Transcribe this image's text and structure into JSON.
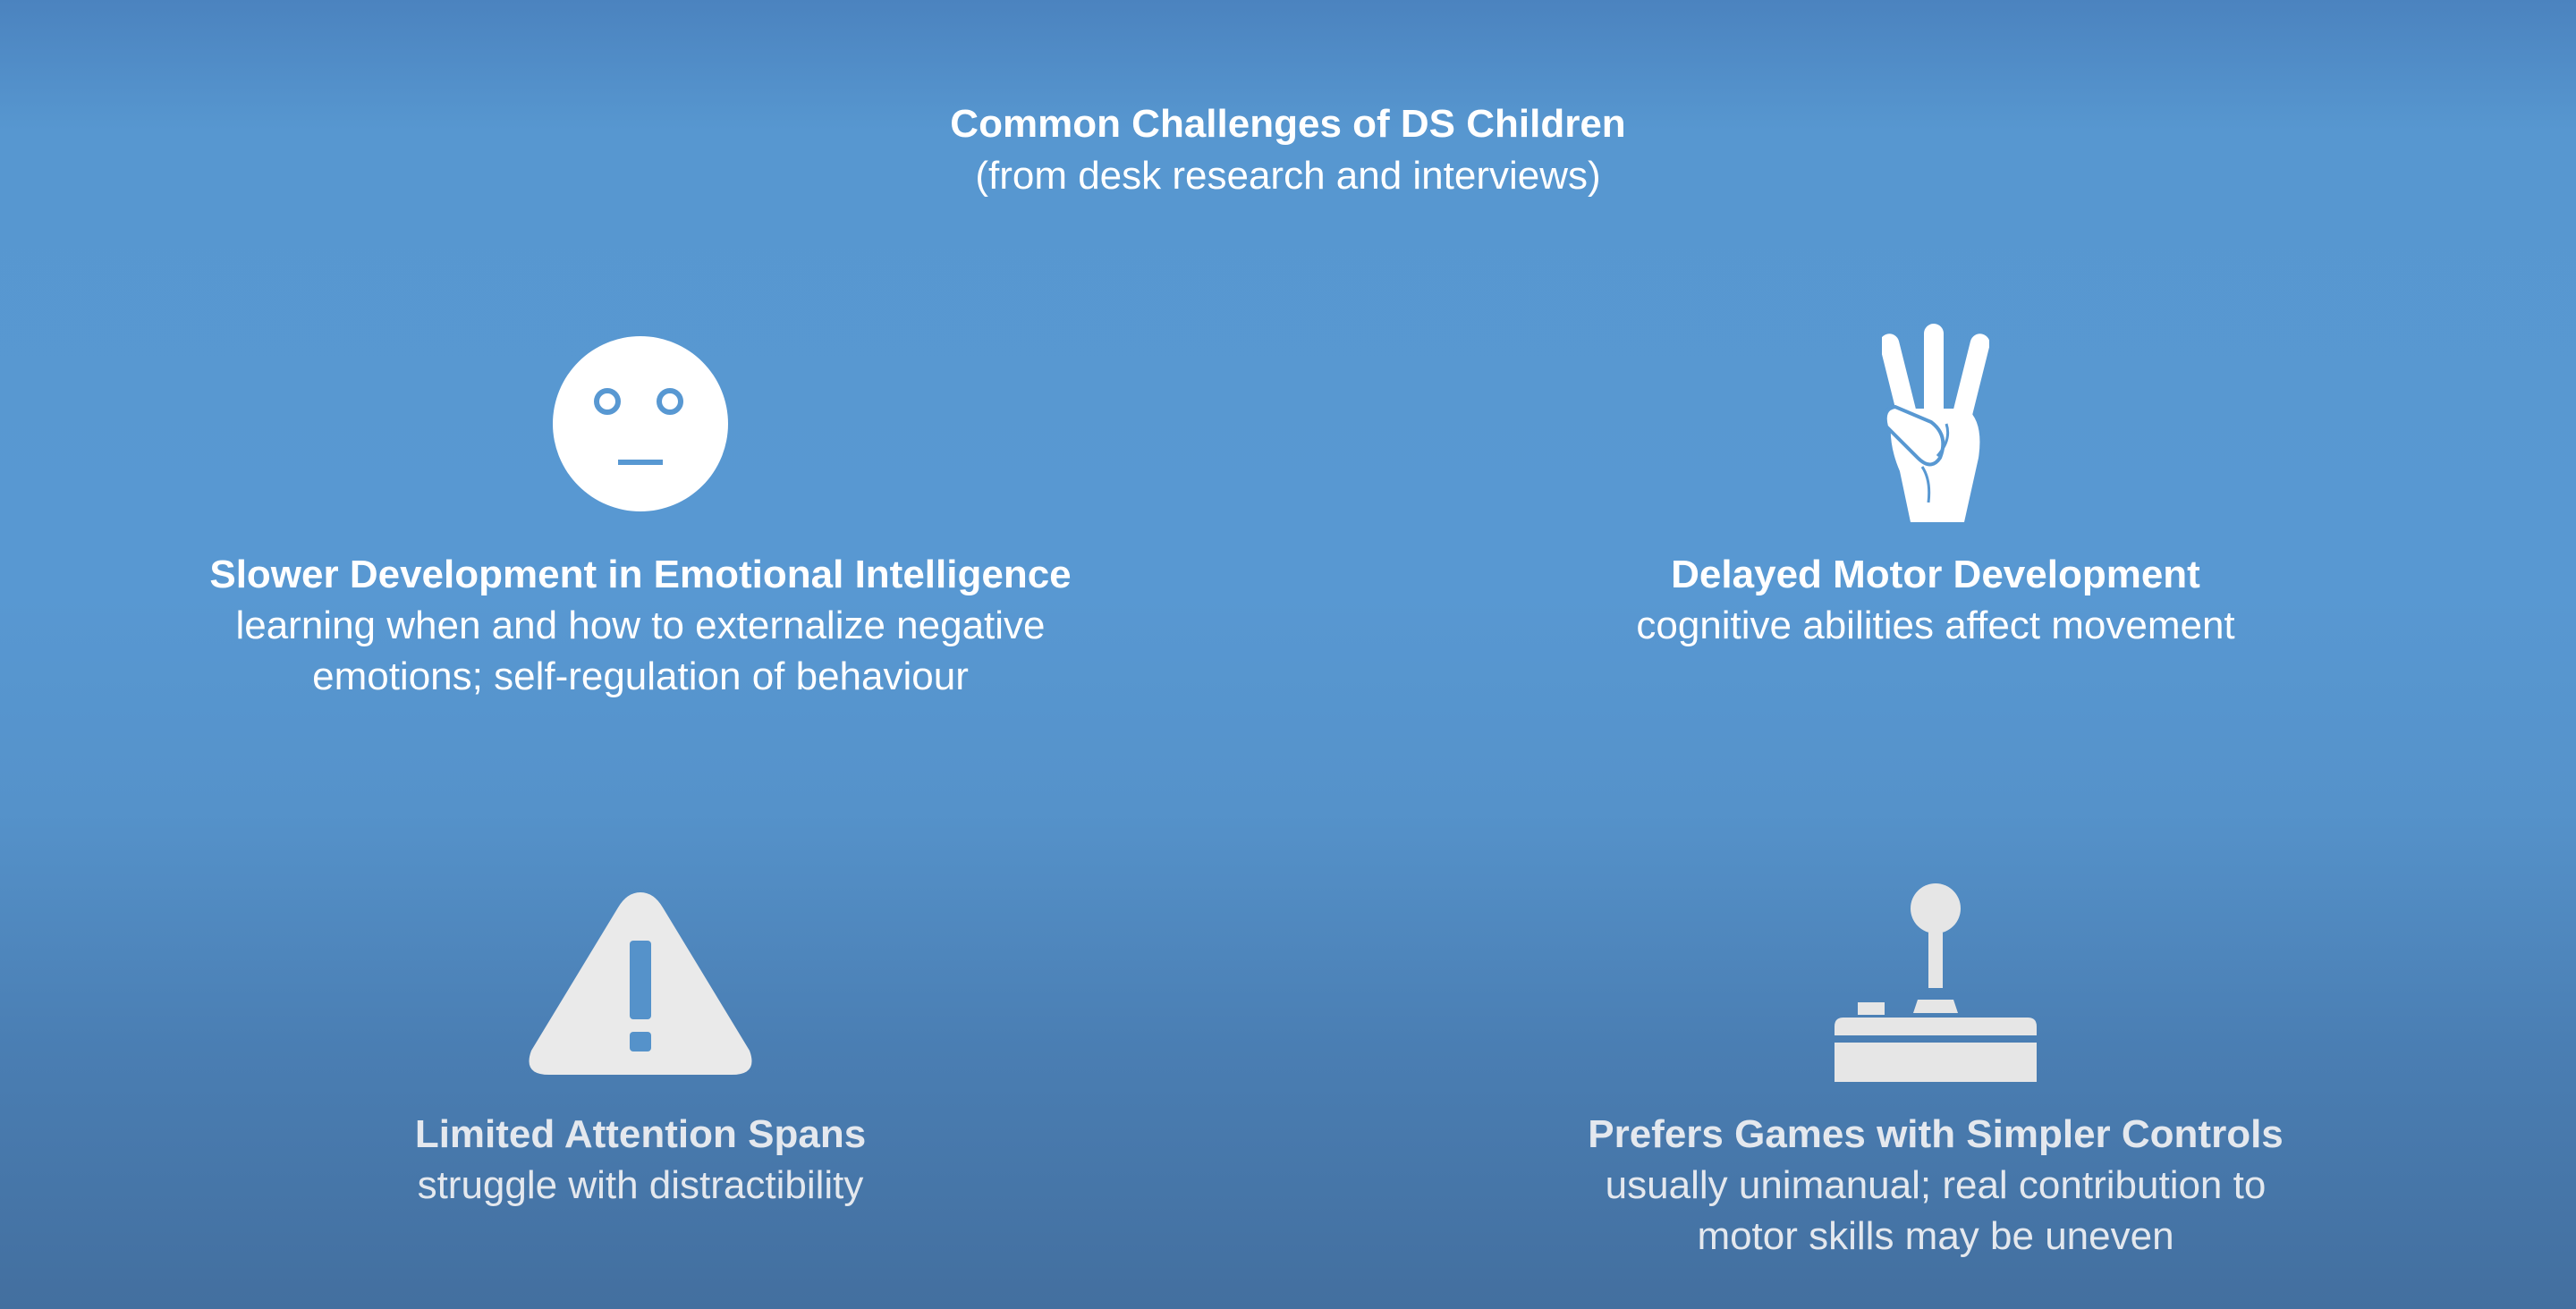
{
  "header": {
    "title": "Common Challenges of DS Children",
    "subtitle": "(from desk research and interviews)"
  },
  "cards": [
    {
      "icon": "neutral-face-icon",
      "title": "Slower Development in Emotional Intelligence",
      "desc_line1": "learning when and how to externalize negative",
      "desc_line2": "emotions; self-regulation of behaviour"
    },
    {
      "icon": "three-fingers-hand-icon",
      "title": "Delayed Motor Development",
      "desc_line1": "cognitive abilities affect movement",
      "desc_line2": ""
    },
    {
      "icon": "warning-triangle-icon",
      "title": "Limited Attention Spans",
      "desc_line1": "struggle with distractibility",
      "desc_line2": ""
    },
    {
      "icon": "joystick-icon",
      "title": "Prefers Games with Simpler Controls",
      "desc_line1": "usually unimanual; real contribution to",
      "desc_line2": "motor skills may be uneven"
    }
  ],
  "colors": {
    "background": "#5898d2",
    "text": "#ffffff",
    "icon_fill": "#ffffff",
    "icon_detail": "#5898d2"
  }
}
